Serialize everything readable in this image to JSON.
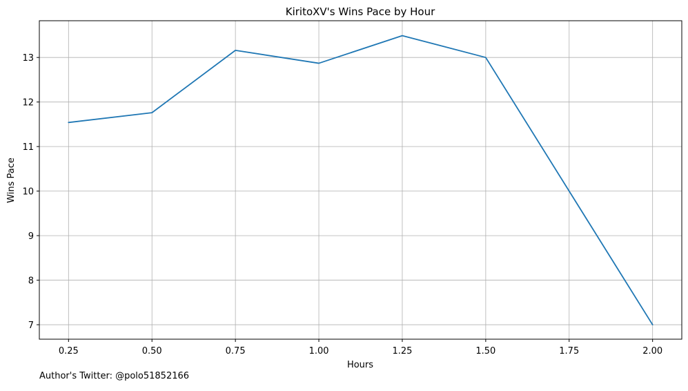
{
  "footer": {
    "author_note": "Author's Twitter: @polo51852166"
  },
  "chart_data": {
    "type": "line",
    "title": "KiritoXV's Wins Pace by Hour",
    "xlabel": "Hours",
    "ylabel": "Wins Pace",
    "x": [
      0.25,
      0.5,
      0.75,
      1.0,
      1.25,
      1.5,
      1.75,
      2.0
    ],
    "x_tick_labels": [
      "0.25",
      "0.50",
      "0.75",
      "1.00",
      "1.25",
      "1.50",
      "1.75",
      "2.00"
    ],
    "y_ticks": [
      7,
      8,
      9,
      10,
      11,
      12,
      13
    ],
    "y_tick_labels": [
      "7",
      "8",
      "9",
      "10",
      "11",
      "12",
      "13"
    ],
    "xlim": [
      0.1625,
      2.0875
    ],
    "ylim": [
      6.675,
      13.825
    ],
    "series": [
      {
        "values": [
          11.54,
          11.76,
          13.16,
          12.87,
          13.49,
          13.0,
          10.0,
          7.0
        ],
        "color": "#1f77b4"
      }
    ],
    "grid": true,
    "colors": {
      "line": "#1f77b4",
      "grid": "#b0b0b0",
      "axes": "#000000"
    }
  }
}
